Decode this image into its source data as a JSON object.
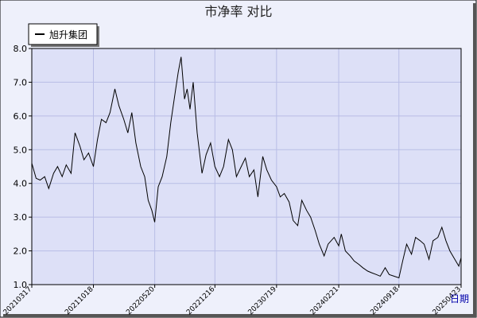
{
  "chart_data": {
    "type": "line",
    "title": "市净率  对比",
    "legend": {
      "placement": "top-left",
      "entries": [
        {
          "name": "旭升集团",
          "color": "#000000"
        }
      ]
    },
    "xlabel": "日期",
    "ylabel": "",
    "ylim": [
      1.0,
      8.0
    ],
    "y_ticks": [
      "1.0",
      "2.0",
      "3.0",
      "4.0",
      "5.0",
      "6.0",
      "7.0",
      "8.0"
    ],
    "x_ticks": [
      "20210317",
      "20211018",
      "20220520",
      "20221216",
      "20230719",
      "20240221",
      "20240918",
      "20250423"
    ],
    "grid": true,
    "colors": {
      "plot_bg": "#dde0f7",
      "page_bg": "#eef0fb",
      "grid": "#b8bde6",
      "line": "#000000",
      "axis_label": "#0000aa"
    },
    "series": [
      {
        "name": "旭升集团",
        "x": [
          "2021-03-17",
          "2021-04-01",
          "2021-04-15",
          "2021-05-01",
          "2021-05-15",
          "2021-06-01",
          "2021-06-15",
          "2021-07-01",
          "2021-07-15",
          "2021-08-01",
          "2021-08-15",
          "2021-09-01",
          "2021-09-15",
          "2021-10-01",
          "2021-10-18",
          "2021-11-01",
          "2021-11-15",
          "2021-12-01",
          "2021-12-15",
          "2022-01-01",
          "2022-01-15",
          "2022-02-01",
          "2022-02-15",
          "2022-03-01",
          "2022-03-15",
          "2022-04-01",
          "2022-04-15",
          "2022-04-27",
          "2022-05-10",
          "2022-05-20",
          "2022-06-01",
          "2022-06-15",
          "2022-07-01",
          "2022-07-15",
          "2022-08-01",
          "2022-08-10",
          "2022-08-20",
          "2022-09-01",
          "2022-09-10",
          "2022-09-20",
          "2022-10-01",
          "2022-10-15",
          "2022-11-01",
          "2022-11-15",
          "2022-12-01",
          "2022-12-16",
          "2023-01-01",
          "2023-01-15",
          "2023-02-01",
          "2023-02-15",
          "2023-03-01",
          "2023-03-15",
          "2023-04-01",
          "2023-04-15",
          "2023-05-01",
          "2023-05-15",
          "2023-06-01",
          "2023-06-15",
          "2023-07-01",
          "2023-07-19",
          "2023-08-01",
          "2023-08-15",
          "2023-09-01",
          "2023-09-15",
          "2023-10-01",
          "2023-10-15",
          "2023-11-01",
          "2023-11-15",
          "2023-12-01",
          "2023-12-15",
          "2024-01-01",
          "2024-01-15",
          "2024-02-05",
          "2024-02-21",
          "2024-03-01",
          "2024-03-15",
          "2024-04-01",
          "2024-04-15",
          "2024-05-01",
          "2024-05-15",
          "2024-06-01",
          "2024-06-15",
          "2024-07-01",
          "2024-07-15",
          "2024-08-01",
          "2024-08-15",
          "2024-09-01",
          "2024-09-18",
          "2024-10-01",
          "2024-10-15",
          "2024-11-01",
          "2024-11-15",
          "2024-12-01",
          "2024-12-15",
          "2025-01-01",
          "2025-01-15",
          "2025-02-01",
          "2025-02-15",
          "2025-03-01",
          "2025-03-15",
          "2025-04-01",
          "2025-04-15",
          "2025-04-23"
        ],
        "values": [
          4.6,
          4.15,
          4.1,
          4.2,
          3.85,
          4.3,
          4.5,
          4.2,
          4.55,
          4.3,
          5.5,
          5.1,
          4.7,
          4.9,
          4.5,
          5.3,
          5.9,
          5.8,
          6.1,
          6.8,
          6.3,
          5.9,
          5.5,
          6.1,
          5.2,
          4.5,
          4.2,
          3.5,
          3.2,
          2.85,
          3.9,
          4.2,
          4.8,
          5.8,
          6.8,
          7.3,
          7.75,
          6.5,
          6.8,
          6.2,
          7.0,
          5.5,
          4.3,
          4.85,
          5.2,
          4.5,
          4.2,
          4.5,
          5.3,
          5.0,
          4.2,
          4.45,
          4.75,
          4.2,
          4.4,
          3.6,
          4.8,
          4.4,
          4.1,
          3.9,
          3.6,
          3.7,
          3.45,
          2.9,
          2.75,
          3.5,
          3.2,
          3.0,
          2.6,
          2.2,
          1.85,
          2.2,
          2.4,
          2.15,
          2.5,
          2.0,
          1.85,
          1.7,
          1.6,
          1.5,
          1.4,
          1.35,
          1.3,
          1.25,
          1.5,
          1.3,
          1.25,
          1.2,
          1.7,
          2.2,
          1.9,
          2.4,
          2.3,
          2.2,
          1.75,
          2.3,
          2.4,
          2.7,
          2.3,
          2.0,
          1.75,
          1.55,
          1.8
        ]
      }
    ]
  }
}
